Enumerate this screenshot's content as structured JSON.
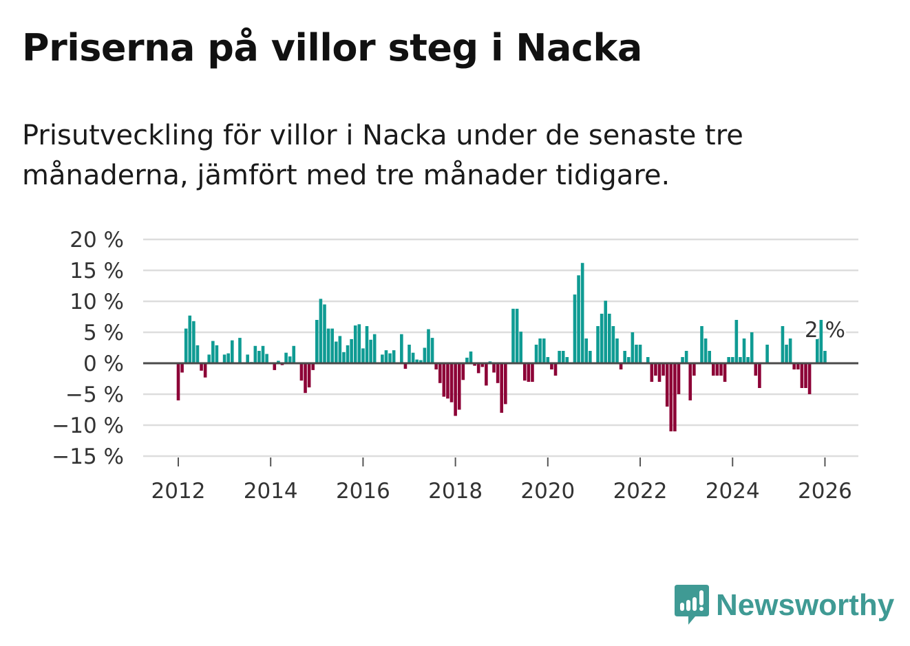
{
  "title": "Priserna på villor steg i Nacka",
  "subtitle": "Prisutveckling för villor i Nacka under de senaste tre månaderna, jämfört med tre månader tidigare.",
  "logo": {
    "text": "Newsworthy",
    "icon": "chart-speech-bubble-icon"
  },
  "colors": {
    "positive": "#0f9b93",
    "negative": "#8c0036",
    "zero_line": "#4a4a4a",
    "grid": "#dddddd",
    "brand": "#3f9a94"
  },
  "chart_data": {
    "type": "bar",
    "title": "Priserna på villor steg i Nacka",
    "xlabel": "",
    "ylabel": "",
    "x_start": "2012-01",
    "x_interval": "month",
    "ylim": [
      -15,
      20
    ],
    "grid": true,
    "y_ticks": [
      20,
      15,
      10,
      5,
      0,
      -5,
      -10,
      -15
    ],
    "y_tick_labels": [
      "20 %",
      "15 %",
      "10 %",
      "5 %",
      "0 %",
      "−5 %",
      "−10 %",
      "−15 %"
    ],
    "x_ticks": [
      2012,
      2014,
      2016,
      2018,
      2020,
      2022,
      2024,
      2026
    ],
    "x_tick_labels": [
      "2012",
      "2014",
      "2016",
      "2018",
      "2020",
      "2022",
      "2024",
      "2026"
    ],
    "annotation": {
      "text": "2 %",
      "target": "last"
    },
    "values": [
      -6,
      -1.5,
      5.6,
      7.7,
      6.8,
      2.9,
      -1.2,
      -2.3,
      1.4,
      3.6,
      2.9,
      0,
      1.4,
      1.6,
      3.7,
      0,
      4.1,
      0,
      1.4,
      0.2,
      2.8,
      2,
      2.8,
      1.5,
      0,
      -1.1,
      0.4,
      -0.3,
      1.7,
      1.1,
      2.8,
      0,
      -2.8,
      -4.8,
      -3.9,
      -1.1,
      7,
      10.4,
      9.5,
      5.6,
      5.6,
      3.5,
      4.4,
      1.8,
      2.9,
      3.9,
      6.1,
      6.3,
      2.4,
      6.0,
      3.8,
      4.7,
      0,
      1.4,
      2.1,
      1.6,
      2.1,
      0,
      4.7,
      -0.9,
      3,
      1.7,
      0.6,
      0.5,
      2.5,
      5.5,
      4.1,
      -1,
      -3.2,
      -5.4,
      -5.7,
      -6.3,
      -8.5,
      -7.5,
      -2.7,
      0.9,
      1.9,
      -0.4,
      -1.6,
      -0.6,
      -3.6,
      0.3,
      -1.5,
      -3.2,
      -8,
      -6.6,
      0,
      8.8,
      8.8,
      5.1,
      -2.8,
      -3,
      -3,
      3,
      4,
      4,
      1,
      -1,
      -2,
      2,
      2,
      1,
      0,
      11.1,
      14.2,
      16.2,
      4,
      2,
      0,
      6,
      8,
      10.1,
      8,
      6,
      4,
      -1,
      2,
      1,
      5,
      3,
      3,
      0,
      1,
      -3,
      -2,
      -3,
      -2,
      -7,
      -11,
      -11,
      -5,
      1,
      2,
      -6,
      -2,
      0,
      6,
      4,
      2,
      -2,
      -2,
      -2,
      -3,
      1,
      1,
      7,
      1,
      4,
      1,
      5,
      -2,
      -4,
      0,
      3,
      0,
      0,
      0,
      6,
      3,
      4,
      -1,
      -1,
      -4,
      -4,
      -5,
      0,
      4,
      7,
      2
    ]
  }
}
